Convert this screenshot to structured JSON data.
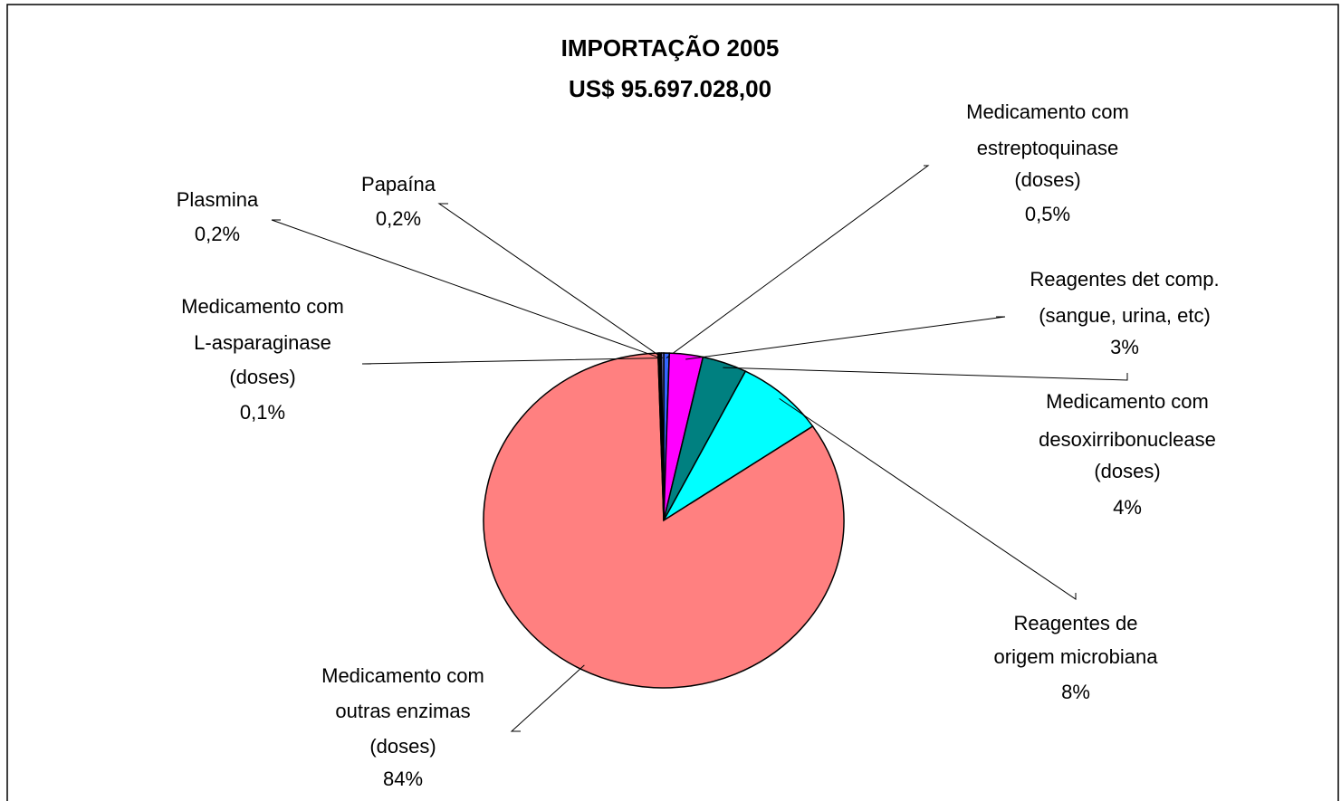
{
  "chart_data": {
    "type": "pie",
    "title": "IMPORTAÇÃO 2005",
    "subtitle": "US$ 95.697.028,00",
    "categories": [
      [
        "Medicamento com",
        "estreptoquinase",
        "(doses)"
      ],
      [
        "Reagentes det comp.",
        "(sangue, urina, etc)"
      ],
      [
        "Medicamento com",
        "desoxirribonuclease",
        "(doses)"
      ],
      [
        "Reagentes de",
        "origem microbiana"
      ],
      [
        "Medicamento com",
        "outras enzimas",
        "(doses)"
      ],
      [
        "Medicamento com",
        "L-asparaginase",
        "(doses)"
      ],
      [
        "Plasmina"
      ],
      [
        "Papaína"
      ]
    ],
    "values": [
      0.5,
      3,
      4,
      8,
      84,
      0.1,
      0.2,
      0.2
    ],
    "value_labels": [
      "0,5%",
      "3%",
      "4%",
      "8%",
      "84%",
      "0,1%",
      "0,2%",
      "0,2%"
    ],
    "colors": [
      "#3366ff",
      "#ff00ff",
      "#008080",
      "#00ffff",
      "#ff8080",
      "#000080",
      "#000000",
      "#9999ff"
    ]
  }
}
